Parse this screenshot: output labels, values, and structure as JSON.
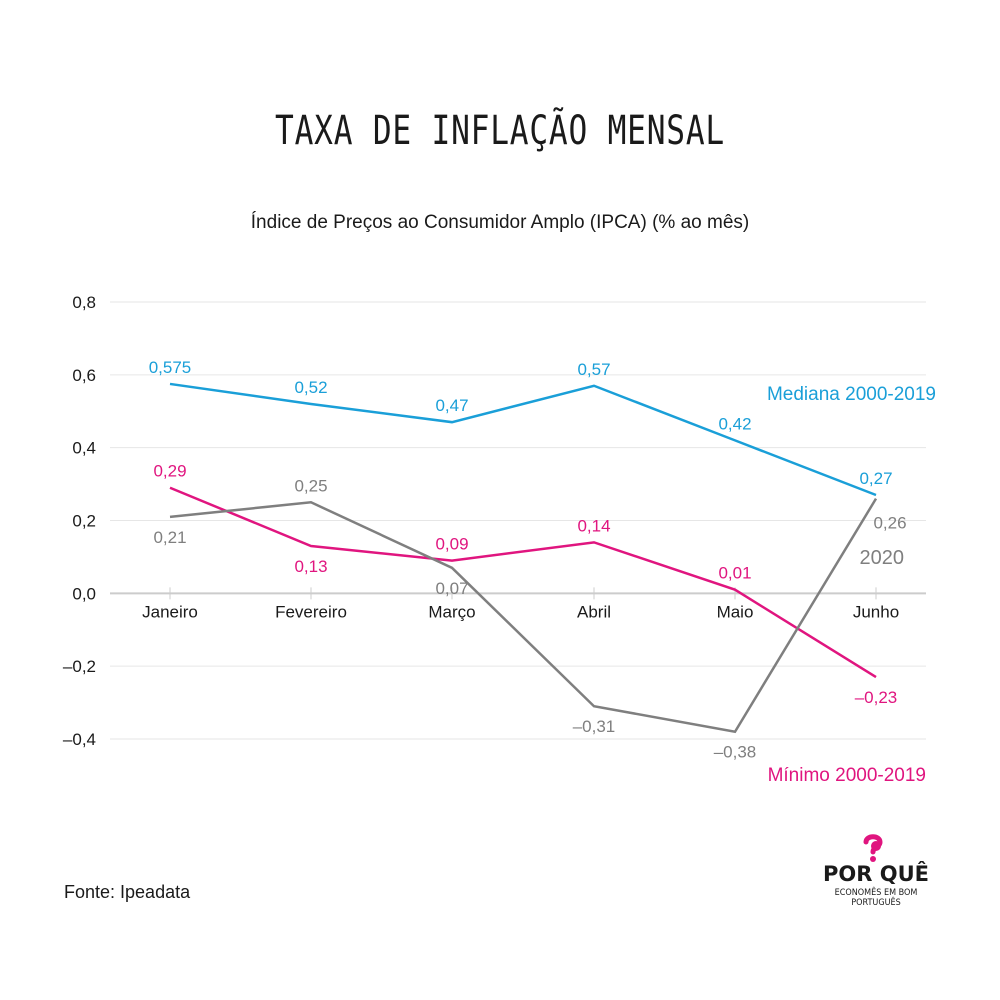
{
  "title": "TAXA DE INFLAÇÃO MENSAL",
  "subtitle": "Índice de Preços ao Consumidor Amplo (IPCA) (% ao mês)",
  "source": "Fonte: Ipeadata",
  "logo": {
    "main": "POR QUÊ",
    "tagline": "ECONOMÊS EM BOM PORTUGUÊS",
    "icon": "question-mark-piggy-icon"
  },
  "colors": {
    "mediana": "#1a9fd8",
    "minimo": "#e0157f",
    "y2020": "#7f7f7f",
    "grid": "#e6e6e6",
    "axis": "#cccccc"
  },
  "chart_data": {
    "type": "line",
    "categories": [
      "Janeiro",
      "Fevereiro",
      "Março",
      "Abril",
      "Maio",
      "Junho"
    ],
    "ylim": [
      -0.4,
      0.8
    ],
    "yticks": [
      {
        "value": 0.8,
        "label": "0,8"
      },
      {
        "value": 0.6,
        "label": "0,6"
      },
      {
        "value": 0.4,
        "label": "0,4"
      },
      {
        "value": 0.2,
        "label": "0,2"
      },
      {
        "value": 0.0,
        "label": "0,0"
      },
      {
        "value": -0.2,
        "label": "–0,2"
      },
      {
        "value": -0.4,
        "label": "–0,4"
      }
    ],
    "grid": true,
    "series": [
      {
        "name": "Mediana 2000-2019",
        "color": "#1a9fd8",
        "values": [
          0.575,
          0.52,
          0.47,
          0.57,
          0.42,
          0.27
        ],
        "labels": [
          "0,575",
          "0,52",
          "0,47",
          "0,57",
          "0,42",
          "0,27"
        ],
        "label_pos": [
          "above",
          "above",
          "above",
          "above",
          "above",
          "above"
        ]
      },
      {
        "name": "Mínimo 2000-2019",
        "color": "#e0157f",
        "values": [
          0.29,
          0.13,
          0.09,
          0.14,
          0.01,
          -0.23
        ],
        "labels": [
          "0,29",
          "0,13",
          "0,09",
          "0,14",
          "0,01",
          "–0,23"
        ],
        "label_pos": [
          "above",
          "below",
          "above",
          "above",
          "above",
          "below"
        ]
      },
      {
        "name": "2020",
        "color": "#7f7f7f",
        "values": [
          0.21,
          0.25,
          0.07,
          -0.31,
          -0.38,
          0.26
        ],
        "labels": [
          "0,21",
          "0,25",
          "0,07",
          "–0,31",
          "–0,38",
          "0,26"
        ],
        "label_pos": [
          "below",
          "above",
          "below",
          "below",
          "below",
          "below-right"
        ]
      }
    ]
  }
}
